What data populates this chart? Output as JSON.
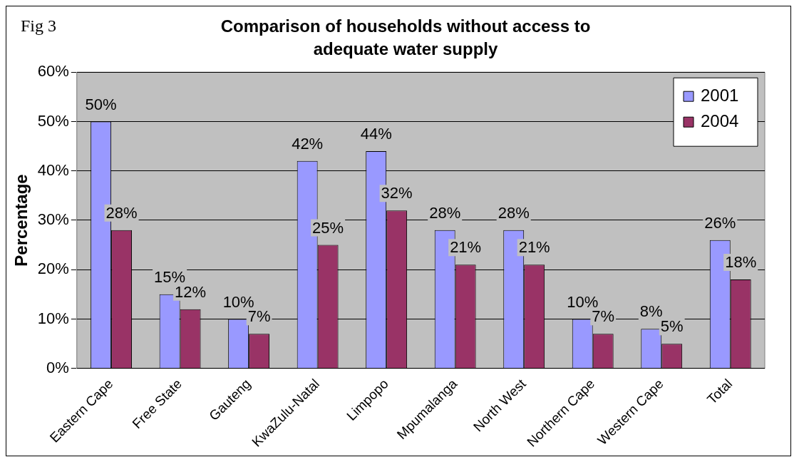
{
  "chart_data": {
    "type": "bar",
    "title": "Comparison of households without access to adequate water supply",
    "ylabel": "Percentage",
    "annotations": [
      "Fig 3"
    ],
    "categories": [
      "Eastern Cape",
      "Free State",
      "Gauteng",
      "KwaZulu-Natal",
      "Limpopo",
      "Mpumalanga",
      "North West",
      "Northern Cape",
      "Western Cape",
      "Total"
    ],
    "series": [
      {
        "name": "2001",
        "color": "#9999ff",
        "values": [
          50,
          15,
          10,
          42,
          44,
          28,
          28,
          10,
          8,
          26
        ],
        "value_labels": [
          "50%",
          "15%",
          "10%",
          "42%",
          "44%",
          "28%",
          "28%",
          "10%",
          "8%",
          "26%"
        ]
      },
      {
        "name": "2004",
        "color": "#993366",
        "values": [
          28,
          12,
          7,
          25,
          32,
          21,
          21,
          7,
          5,
          18
        ],
        "value_labels": [
          "28%",
          "12%",
          "7%",
          "25%",
          "32%",
          "21%",
          "21%",
          "7%",
          "5%",
          "18%"
        ]
      }
    ],
    "ylim": [
      0,
      60
    ],
    "yticks": [
      {
        "value": 0,
        "label": "0%"
      },
      {
        "value": 10,
        "label": "10%"
      },
      {
        "value": 20,
        "label": "20%"
      },
      {
        "value": 30,
        "label": "30%"
      },
      {
        "value": 40,
        "label": "40%"
      },
      {
        "value": 50,
        "label": "50%"
      },
      {
        "value": 60,
        "label": "60%"
      }
    ],
    "grid": "y",
    "legend": "top right"
  }
}
